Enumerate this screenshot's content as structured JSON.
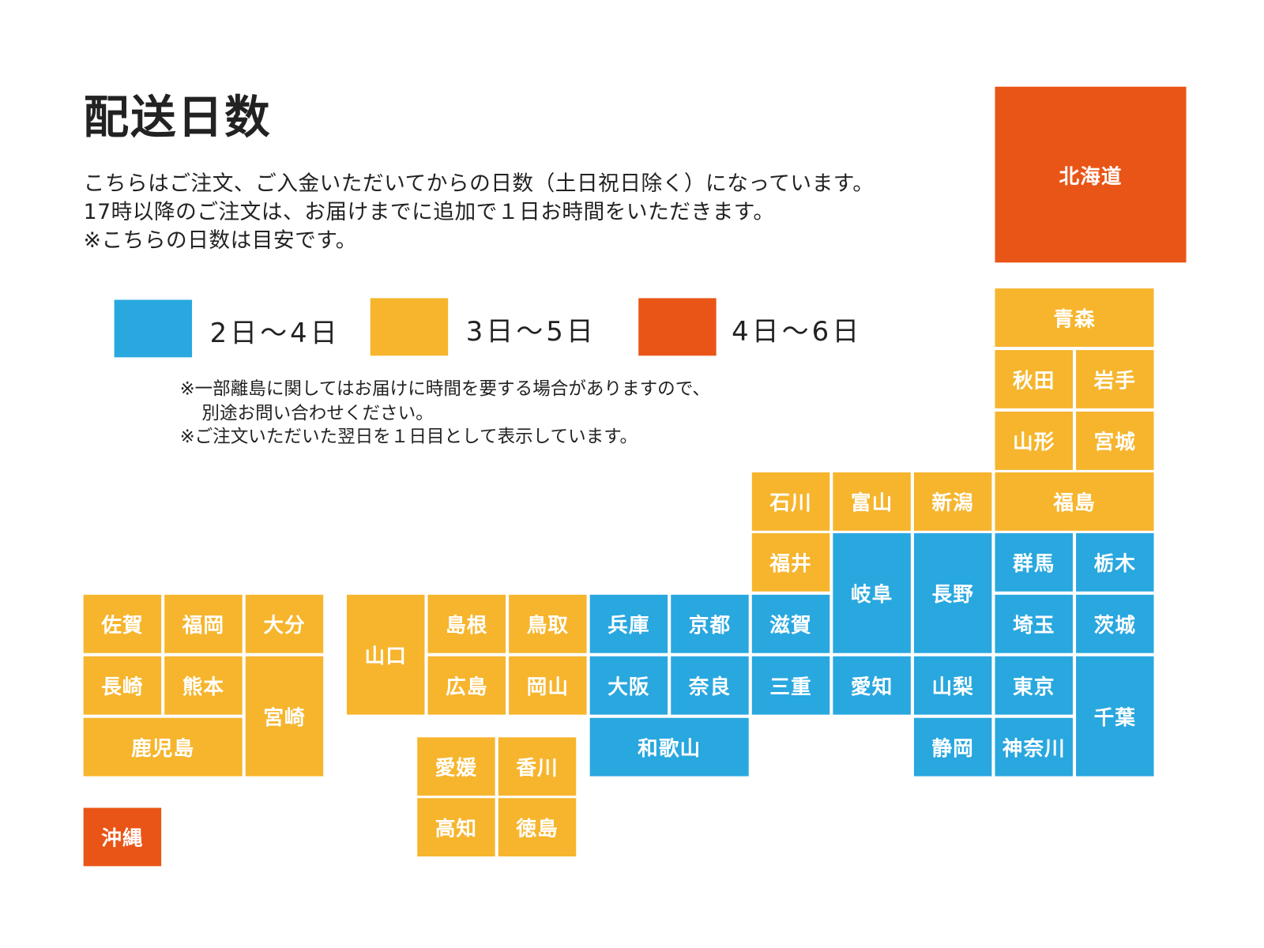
{
  "title": "配送日数",
  "description": [
    "こちらはご注文、ご入金いただいてからの日数（土日祝日除く）になっています。",
    "17時以降のご注文は、お届けまでに追加で１日お時間をいただきます。",
    "※こちらの日数は目安です。"
  ],
  "colors": {
    "g1": "#29a7df",
    "g2": "#f6b52d",
    "g3": "#e95516"
  },
  "legend": [
    {
      "group": "g1",
      "label": "2日〜4日"
    },
    {
      "group": "g2",
      "label": "3日〜5日"
    },
    {
      "group": "g3",
      "label": "4日〜6日"
    }
  ],
  "notes": [
    "※一部離島に関してはお届けに時間を要する場合がありますので、",
    "別途お問い合わせください。",
    "※ご注文いただいた翌日を１日目として表示しています。"
  ],
  "prefectures": [
    {
      "name": "北海道",
      "group": "g3"
    },
    {
      "name": "青森",
      "group": "g2"
    },
    {
      "name": "秋田",
      "group": "g2"
    },
    {
      "name": "岩手",
      "group": "g2"
    },
    {
      "name": "山形",
      "group": "g2"
    },
    {
      "name": "宮城",
      "group": "g2"
    },
    {
      "name": "石川",
      "group": "g2"
    },
    {
      "name": "富山",
      "group": "g2"
    },
    {
      "name": "新潟",
      "group": "g2"
    },
    {
      "name": "福島",
      "group": "g2"
    },
    {
      "name": "福井",
      "group": "g2"
    },
    {
      "name": "岐阜",
      "group": "g1"
    },
    {
      "name": "長野",
      "group": "g1"
    },
    {
      "name": "群馬",
      "group": "g1"
    },
    {
      "name": "栃木",
      "group": "g1"
    },
    {
      "name": "兵庫",
      "group": "g1"
    },
    {
      "name": "京都",
      "group": "g1"
    },
    {
      "name": "滋賀",
      "group": "g1"
    },
    {
      "name": "埼玉",
      "group": "g1"
    },
    {
      "name": "茨城",
      "group": "g1"
    },
    {
      "name": "山口",
      "group": "g2"
    },
    {
      "name": "島根",
      "group": "g2"
    },
    {
      "name": "鳥取",
      "group": "g2"
    },
    {
      "name": "広島",
      "group": "g2"
    },
    {
      "name": "岡山",
      "group": "g2"
    },
    {
      "name": "大阪",
      "group": "g1"
    },
    {
      "name": "奈良",
      "group": "g1"
    },
    {
      "name": "三重",
      "group": "g1"
    },
    {
      "name": "愛知",
      "group": "g1"
    },
    {
      "name": "山梨",
      "group": "g1"
    },
    {
      "name": "東京",
      "group": "g1"
    },
    {
      "name": "千葉",
      "group": "g1"
    },
    {
      "name": "和歌山",
      "group": "g1"
    },
    {
      "name": "静岡",
      "group": "g1"
    },
    {
      "name": "神奈川",
      "group": "g1"
    },
    {
      "name": "佐賀",
      "group": "g2"
    },
    {
      "name": "福岡",
      "group": "g2"
    },
    {
      "name": "大分",
      "group": "g2"
    },
    {
      "name": "長崎",
      "group": "g2"
    },
    {
      "name": "熊本",
      "group": "g2"
    },
    {
      "name": "宮崎",
      "group": "g2"
    },
    {
      "name": "鹿児島",
      "group": "g2"
    },
    {
      "name": "愛媛",
      "group": "g2"
    },
    {
      "name": "香川",
      "group": "g2"
    },
    {
      "name": "高知",
      "group": "g2"
    },
    {
      "name": "徳島",
      "group": "g2"
    },
    {
      "name": "沖縄",
      "group": "g3"
    }
  ]
}
